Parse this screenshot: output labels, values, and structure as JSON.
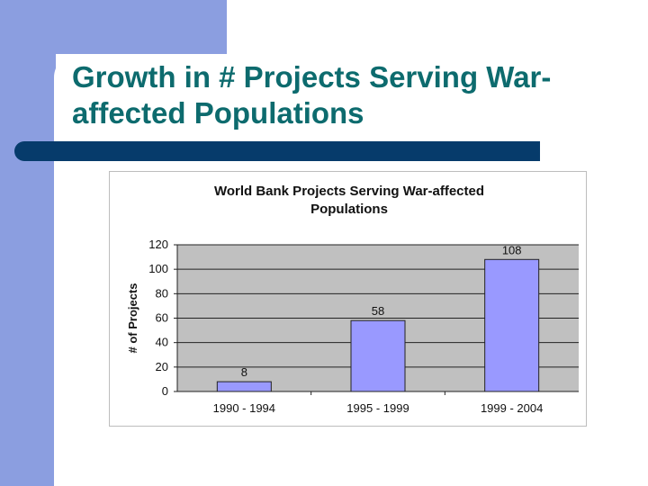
{
  "slide": {
    "title": "Growth in # Projects Serving War-\naffected Populations"
  },
  "chart_data": {
    "type": "bar",
    "title": "World Bank Projects Serving War-affected\nPopulations",
    "xlabel": "",
    "ylabel": "# of Projects",
    "categories": [
      "1990 - 1994",
      "1995 - 1999",
      "1999 - 2004"
    ],
    "values": [
      8,
      58,
      108
    ],
    "data_labels": [
      "8",
      "58",
      "108"
    ],
    "yticks": [
      0,
      20,
      40,
      60,
      80,
      100,
      120
    ],
    "ylim": [
      0,
      120
    ],
    "grid": true,
    "legend": "none",
    "colors": {
      "bar_fill": "#9999ff",
      "bar_stroke": "#222222",
      "plot_bg": "#c0c0c0",
      "gridline": "#222222"
    }
  }
}
